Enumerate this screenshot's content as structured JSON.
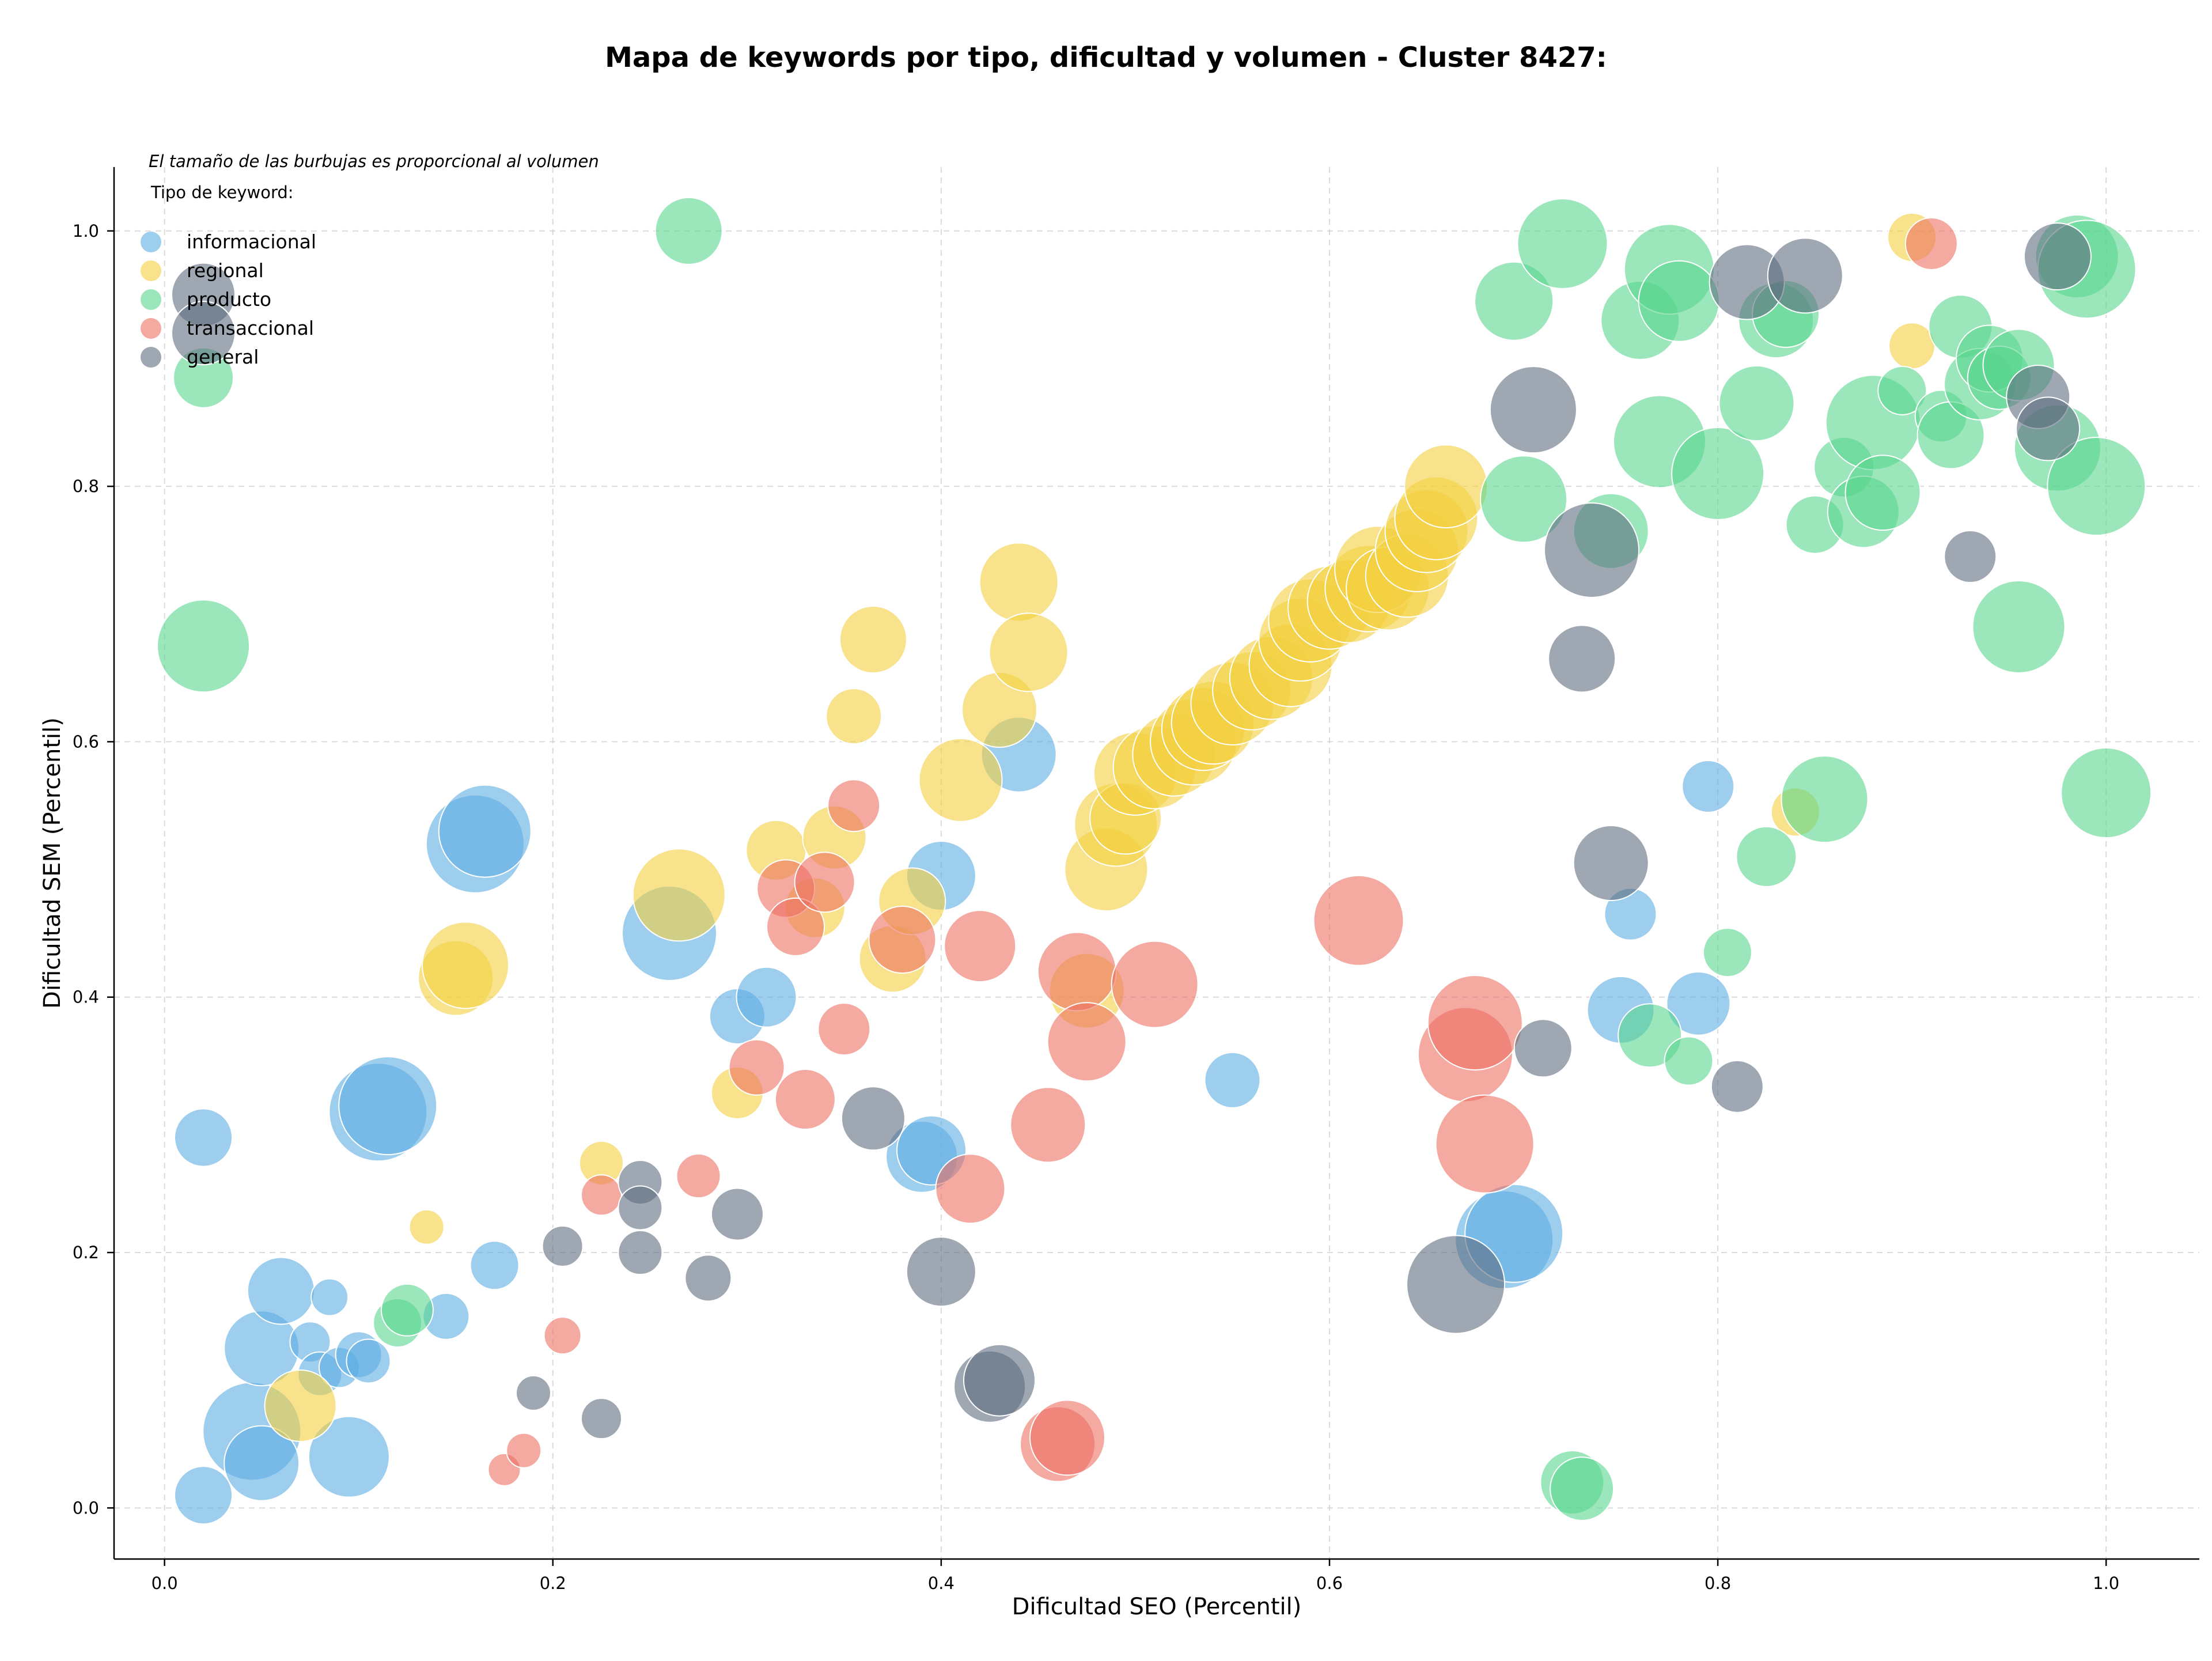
{
  "chart_data": {
    "type": "scatter",
    "title": "Mapa de keywords por tipo, dificultad y volumen - Cluster 8427:",
    "xlabel": "Dificultad SEO (Percentil)",
    "ylabel": "Dificultad SEM (Percentil)",
    "note": "El tamaño de las burbujas es proporcional al volumen",
    "legend_title": "Tipo de keyword:",
    "legend_position": "top-left",
    "xlim": [
      -0.026,
      1.048
    ],
    "ylim": [
      -0.04,
      1.05
    ],
    "x_ticks": [
      "0.0",
      "0.2",
      "0.4",
      "0.6",
      "0.8",
      "1.0"
    ],
    "y_ticks": [
      "0.0",
      "0.2",
      "0.4",
      "0.6",
      "0.8",
      "1.0"
    ],
    "grid": true,
    "series": [
      {
        "name": "informacional",
        "color": "#5dade2",
        "points": [
          [
            0.02,
            0.29,
            50
          ],
          [
            0.02,
            0.01,
            50
          ],
          [
            0.045,
            0.06,
            85
          ],
          [
            0.05,
            0.035,
            65
          ],
          [
            0.05,
            0.125,
            65
          ],
          [
            0.06,
            0.17,
            58
          ],
          [
            0.075,
            0.13,
            35
          ],
          [
            0.08,
            0.105,
            38
          ],
          [
            0.085,
            0.165,
            32
          ],
          [
            0.09,
            0.11,
            35
          ],
          [
            0.095,
            0.04,
            70
          ],
          [
            0.1,
            0.12,
            40
          ],
          [
            0.105,
            0.115,
            38
          ],
          [
            0.11,
            0.31,
            85
          ],
          [
            0.115,
            0.315,
            85
          ],
          [
            0.145,
            0.15,
            40
          ],
          [
            0.17,
            0.19,
            42
          ],
          [
            0.16,
            0.52,
            85
          ],
          [
            0.165,
            0.53,
            80
          ],
          [
            0.26,
            0.45,
            82
          ],
          [
            0.295,
            0.385,
            48
          ],
          [
            0.31,
            0.4,
            52
          ],
          [
            0.39,
            0.275,
            62
          ],
          [
            0.395,
            0.28,
            60
          ],
          [
            0.4,
            0.495,
            60
          ],
          [
            0.44,
            0.59,
            65
          ],
          [
            0.55,
            0.335,
            48
          ],
          [
            0.69,
            0.21,
            85
          ],
          [
            0.695,
            0.215,
            85
          ],
          [
            0.755,
            0.465,
            45
          ],
          [
            0.75,
            0.39,
            58
          ],
          [
            0.795,
            0.565,
            45
          ],
          [
            0.79,
            0.395,
            55
          ]
        ]
      },
      {
        "name": "regional",
        "color": "#f4d03f",
        "points": [
          [
            0.07,
            0.08,
            62
          ],
          [
            0.135,
            0.22,
            30
          ],
          [
            0.15,
            0.415,
            65
          ],
          [
            0.155,
            0.425,
            75
          ],
          [
            0.225,
            0.27,
            38
          ],
          [
            0.265,
            0.48,
            80
          ],
          [
            0.295,
            0.325,
            45
          ],
          [
            0.315,
            0.515,
            52
          ],
          [
            0.335,
            0.47,
            52
          ],
          [
            0.345,
            0.525,
            55
          ],
          [
            0.355,
            0.62,
            48
          ],
          [
            0.365,
            0.68,
            58
          ],
          [
            0.375,
            0.43,
            58
          ],
          [
            0.385,
            0.475,
            58
          ],
          [
            0.41,
            0.57,
            72
          ],
          [
            0.43,
            0.625,
            65
          ],
          [
            0.44,
            0.725,
            68
          ],
          [
            0.445,
            0.67,
            68
          ],
          [
            0.475,
            0.405,
            65
          ],
          [
            0.485,
            0.5,
            72
          ],
          [
            0.49,
            0.535,
            72
          ],
          [
            0.495,
            0.54,
            62
          ],
          [
            0.5,
            0.575,
            72
          ],
          [
            0.51,
            0.58,
            72
          ],
          [
            0.52,
            0.59,
            72
          ],
          [
            0.53,
            0.6,
            75
          ],
          [
            0.535,
            0.61,
            72
          ],
          [
            0.54,
            0.615,
            72
          ],
          [
            0.55,
            0.63,
            72
          ],
          [
            0.56,
            0.64,
            68
          ],
          [
            0.57,
            0.65,
            72
          ],
          [
            0.58,
            0.66,
            72
          ],
          [
            0.585,
            0.68,
            72
          ],
          [
            0.59,
            0.695,
            72
          ],
          [
            0.6,
            0.705,
            72
          ],
          [
            0.61,
            0.71,
            72
          ],
          [
            0.62,
            0.72,
            75
          ],
          [
            0.625,
            0.735,
            75
          ],
          [
            0.63,
            0.72,
            72
          ],
          [
            0.64,
            0.73,
            72
          ],
          [
            0.645,
            0.75,
            72
          ],
          [
            0.65,
            0.765,
            72
          ],
          [
            0.655,
            0.775,
            72
          ],
          [
            0.66,
            0.8,
            72
          ],
          [
            0.84,
            0.545,
            42
          ],
          [
            0.9,
            0.995,
            42
          ],
          [
            0.9,
            0.91,
            40
          ]
        ]
      },
      {
        "name": "producto",
        "color": "#58d68d",
        "points": [
          [
            0.02,
            0.885,
            52
          ],
          [
            0.02,
            0.675,
            80
          ],
          [
            0.12,
            0.145,
            42
          ],
          [
            0.125,
            0.155,
            45
          ],
          [
            0.27,
            1.0,
            58
          ],
          [
            0.695,
            0.945,
            68
          ],
          [
            0.7,
            0.79,
            75
          ],
          [
            0.72,
            0.99,
            78
          ],
          [
            0.725,
            0.02,
            55
          ],
          [
            0.73,
            0.015,
            55
          ],
          [
            0.745,
            0.765,
            65
          ],
          [
            0.76,
            0.93,
            68
          ],
          [
            0.765,
            0.37,
            55
          ],
          [
            0.77,
            0.835,
            80
          ],
          [
            0.775,
            0.97,
            78
          ],
          [
            0.78,
            0.945,
            70
          ],
          [
            0.785,
            0.35,
            42
          ],
          [
            0.8,
            0.81,
            80
          ],
          [
            0.805,
            0.435,
            42
          ],
          [
            0.82,
            0.865,
            65
          ],
          [
            0.825,
            0.51,
            52
          ],
          [
            0.83,
            0.93,
            65
          ],
          [
            0.835,
            0.935,
            58
          ],
          [
            0.85,
            0.77,
            50
          ],
          [
            0.855,
            0.555,
            75
          ],
          [
            0.865,
            0.815,
            52
          ],
          [
            0.875,
            0.78,
            62
          ],
          [
            0.88,
            0.85,
            82
          ],
          [
            0.885,
            0.795,
            65
          ],
          [
            0.895,
            0.875,
            42
          ],
          [
            0.915,
            0.855,
            45
          ],
          [
            0.92,
            0.84,
            58
          ],
          [
            0.925,
            0.925,
            55
          ],
          [
            0.935,
            0.88,
            62
          ],
          [
            0.94,
            0.9,
            58
          ],
          [
            0.945,
            0.885,
            55
          ],
          [
            0.955,
            0.895,
            62
          ],
          [
            0.955,
            0.69,
            80
          ],
          [
            0.975,
            0.83,
            75
          ],
          [
            0.985,
            0.98,
            72
          ],
          [
            0.99,
            0.97,
            85
          ],
          [
            0.995,
            0.8,
            85
          ],
          [
            1.0,
            0.56,
            78
          ]
        ]
      },
      {
        "name": "transaccional",
        "color": "#ec7063",
        "points": [
          [
            0.175,
            0.03,
            28
          ],
          [
            0.185,
            0.045,
            30
          ],
          [
            0.205,
            0.135,
            32
          ],
          [
            0.225,
            0.245,
            35
          ],
          [
            0.275,
            0.26,
            38
          ],
          [
            0.305,
            0.345,
            48
          ],
          [
            0.32,
            0.485,
            50
          ],
          [
            0.325,
            0.455,
            50
          ],
          [
            0.33,
            0.32,
            52
          ],
          [
            0.34,
            0.49,
            52
          ],
          [
            0.35,
            0.375,
            45
          ],
          [
            0.355,
            0.55,
            45
          ],
          [
            0.38,
            0.445,
            58
          ],
          [
            0.415,
            0.25,
            60
          ],
          [
            0.42,
            0.44,
            62
          ],
          [
            0.455,
            0.3,
            65
          ],
          [
            0.46,
            0.05,
            65
          ],
          [
            0.465,
            0.055,
            65
          ],
          [
            0.47,
            0.42,
            68
          ],
          [
            0.475,
            0.365,
            68
          ],
          [
            0.51,
            0.41,
            75
          ],
          [
            0.615,
            0.46,
            78
          ],
          [
            0.67,
            0.355,
            82
          ],
          [
            0.675,
            0.38,
            82
          ],
          [
            0.68,
            0.285,
            85
          ],
          [
            0.91,
            0.99,
            45
          ]
        ]
      },
      {
        "name": "general",
        "color": "#5d6d7e",
        "points": [
          [
            0.02,
            0.95,
            55
          ],
          [
            0.02,
            0.92,
            55
          ],
          [
            0.19,
            0.09,
            30
          ],
          [
            0.205,
            0.205,
            35
          ],
          [
            0.225,
            0.07,
            35
          ],
          [
            0.245,
            0.255,
            38
          ],
          [
            0.245,
            0.235,
            38
          ],
          [
            0.245,
            0.2,
            38
          ],
          [
            0.28,
            0.18,
            40
          ],
          [
            0.295,
            0.23,
            45
          ],
          [
            0.365,
            0.305,
            55
          ],
          [
            0.4,
            0.185,
            60
          ],
          [
            0.425,
            0.095,
            62
          ],
          [
            0.43,
            0.1,
            62
          ],
          [
            0.665,
            0.175,
            85
          ],
          [
            0.705,
            0.86,
            75
          ],
          [
            0.71,
            0.36,
            50
          ],
          [
            0.73,
            0.665,
            58
          ],
          [
            0.735,
            0.75,
            82
          ],
          [
            0.745,
            0.505,
            65
          ],
          [
            0.81,
            0.33,
            45
          ],
          [
            0.815,
            0.96,
            65
          ],
          [
            0.845,
            0.965,
            65
          ],
          [
            0.93,
            0.745,
            45
          ],
          [
            0.965,
            0.87,
            55
          ],
          [
            0.97,
            0.845,
            55
          ],
          [
            0.975,
            0.98,
            58
          ]
        ]
      }
    ]
  }
}
